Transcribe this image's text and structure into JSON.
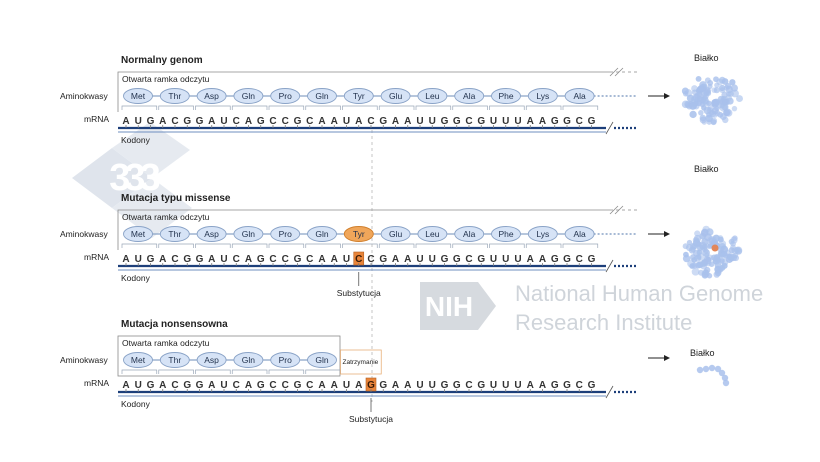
{
  "watermark": {
    "logo_text": "333",
    "nih_badge": "NIH",
    "institute_line1": "National Human Genome",
    "institute_line2": "Research Institute"
  },
  "panels": [
    {
      "id": "normal",
      "title": "Normalny genom",
      "frame_label": "Otwarta ramka odczytu",
      "amino_label": "Aminokwasy",
      "mrna_label": "mRNA",
      "codons_label": "Kodony",
      "protein_label": "Białko",
      "amino_acids": [
        "Met",
        "Thr",
        "Asp",
        "Gln",
        "Pro",
        "Gln",
        "Tyr",
        "Glu",
        "Leu",
        "Ala",
        "Phe",
        "Lys",
        "Ala"
      ],
      "mrna": [
        "A",
        "U",
        "G",
        "A",
        "C",
        "G",
        "G",
        "A",
        "U",
        "C",
        "A",
        "G",
        "C",
        "C",
        "G",
        "C",
        "A",
        "A",
        "U",
        "A",
        "C",
        "G",
        "A",
        "A",
        "U",
        "U",
        "G",
        "G",
        "C",
        "G",
        "U",
        "U",
        "U",
        "A",
        "A",
        "G",
        "G",
        "C",
        "G"
      ],
      "highlight_index": -1,
      "mutant_amino_index": -1,
      "substitution_label": "",
      "stop_label": ""
    },
    {
      "id": "missense",
      "title": "Mutacja typu missense",
      "frame_label": "Otwarta ramka odczytu",
      "amino_label": "Aminokwasy",
      "mrna_label": "mRNA",
      "codons_label": "Kodony",
      "protein_label": "Białko",
      "amino_acids": [
        "Met",
        "Thr",
        "Asp",
        "Gln",
        "Pro",
        "Gln",
        "Tyr",
        "Glu",
        "Leu",
        "Ala",
        "Phe",
        "Lys",
        "Ala"
      ],
      "mrna": [
        "A",
        "U",
        "G",
        "A",
        "C",
        "G",
        "G",
        "A",
        "U",
        "C",
        "A",
        "G",
        "C",
        "C",
        "G",
        "C",
        "A",
        "A",
        "U",
        "C",
        "C",
        "G",
        "A",
        "A",
        "U",
        "U",
        "G",
        "G",
        "C",
        "G",
        "U",
        "U",
        "U",
        "A",
        "A",
        "G",
        "G",
        "C",
        "G"
      ],
      "highlight_index": 19,
      "mutant_amino_index": 6,
      "substitution_label": "Substytucja",
      "stop_label": ""
    },
    {
      "id": "nonsense",
      "title": "Mutacja nonsensowna",
      "frame_label": "Otwarta ramka odczytu",
      "amino_label": "Aminokwasy",
      "mrna_label": "mRNA",
      "codons_label": "Kodony",
      "protein_label": "Białko",
      "amino_acids": [
        "Met",
        "Thr",
        "Asp",
        "Gln",
        "Pro",
        "Gln"
      ],
      "mrna": [
        "A",
        "U",
        "G",
        "A",
        "C",
        "G",
        "G",
        "A",
        "U",
        "C",
        "A",
        "G",
        "C",
        "C",
        "G",
        "C",
        "A",
        "A",
        "U",
        "A",
        "G",
        "G",
        "A",
        "A",
        "U",
        "U",
        "G",
        "G",
        "C",
        "G",
        "U",
        "U",
        "U",
        "A",
        "A",
        "G",
        "G",
        "C",
        "G"
      ],
      "highlight_index": 20,
      "mutant_amino_index": -1,
      "substitution_label": "Substytucja",
      "stop_label": "Zatrzymanie"
    }
  ],
  "colors": {
    "amino_fill": "#d6e3f6",
    "amino_stroke": "#8aa3c7",
    "mutant_fill": "#f0a65a",
    "mutant_stroke": "#d07f2c",
    "strand": "#1d3f7a",
    "highlight_fill": "#e8843a",
    "protein": "#a9c1ec",
    "protein_dot": "#e2875a",
    "text": "#222222",
    "watermark": "#cfd4da"
  }
}
